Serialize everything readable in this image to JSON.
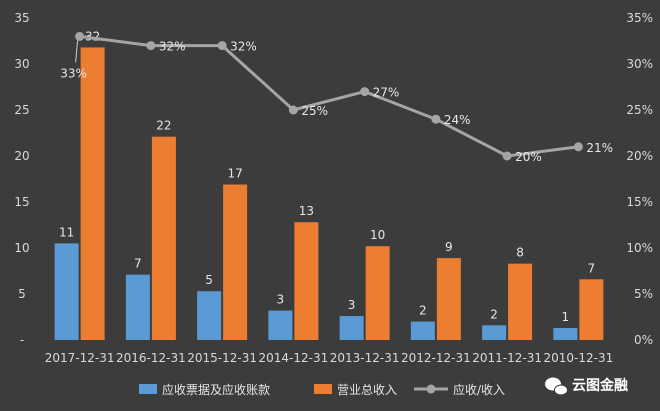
{
  "chart_data": {
    "type": "bar",
    "categories": [
      "2017-12-31",
      "2016-12-31",
      "2015-12-31",
      "2014-12-31",
      "2013-12-31",
      "2012-12-31",
      "2011-12-31",
      "2010-12-31"
    ],
    "series": [
      {
        "name": "应收票据及应收账款",
        "kind": "bar",
        "axis": "left",
        "color": "#5b9bd5",
        "values": [
          11,
          7,
          5,
          3,
          3,
          2,
          2,
          1
        ],
        "labels": [
          "11",
          "7",
          "5",
          "3",
          "3",
          "2",
          "2",
          "1"
        ],
        "plotted": [
          10.5,
          7.1,
          5.3,
          3.2,
          2.6,
          2.0,
          1.6,
          1.3
        ]
      },
      {
        "name": "营业总收入",
        "kind": "bar",
        "axis": "left",
        "color": "#ed7d31",
        "values": [
          32,
          22,
          17,
          13,
          10,
          9,
          8,
          7
        ],
        "labels": [
          "32",
          "22",
          "17",
          "13",
          "10",
          "9",
          "8",
          "7"
        ],
        "plotted": [
          31.8,
          22.1,
          16.9,
          12.8,
          10.2,
          8.9,
          8.3,
          6.6
        ]
      },
      {
        "name": "应收/收入",
        "kind": "line",
        "axis": "right",
        "color": "#a5a5a5",
        "values": [
          33,
          32,
          32,
          25,
          27,
          24,
          20,
          21
        ],
        "labels": [
          "33%",
          "32%",
          "32%",
          "25%",
          "27%",
          "24%",
          "20%",
          "21%"
        ]
      }
    ],
    "left_axis": {
      "ylim": [
        0,
        35
      ],
      "ticks": [
        "-",
        "5",
        "10",
        "15",
        "20",
        "25",
        "30",
        "35"
      ]
    },
    "right_axis": {
      "ylim": [
        0,
        35
      ],
      "ticks": [
        "0%",
        "5%",
        "10%",
        "15%",
        "20%",
        "25%",
        "30%",
        "35%"
      ]
    },
    "legend_position": "bottom",
    "grid": false
  },
  "watermark": {
    "text": "云图金融",
    "icon": "wechat-icon"
  }
}
